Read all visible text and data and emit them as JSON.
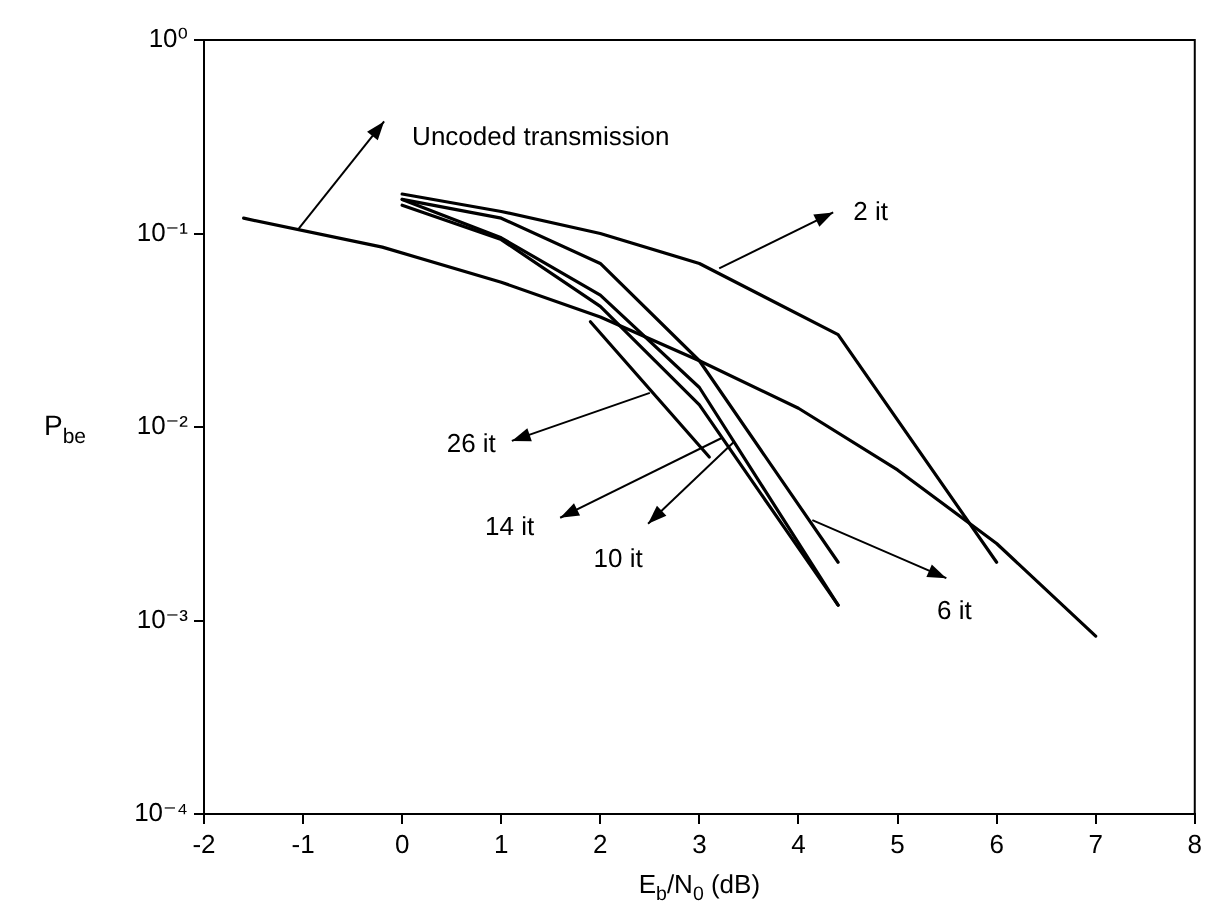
{
  "chart_data": {
    "type": "line",
    "xlabel": "E$_{b}$/N$_{0}$ (dB)",
    "ylabel": "P$_{be}$",
    "xlim": [
      -2,
      8
    ],
    "xticks": [
      -2,
      -1,
      0,
      1,
      2,
      3,
      4,
      5,
      6,
      7,
      8
    ],
    "ylim": [
      0.0001,
      1
    ],
    "yticks": [
      {
        "value": 0.0001,
        "label": "10⁻⁴"
      },
      {
        "value": 0.001,
        "label": "10⁻³"
      },
      {
        "value": 0.01,
        "label": "10⁻²"
      },
      {
        "value": 0.1,
        "label": "10⁻¹"
      },
      {
        "value": 1,
        "label": "10⁰"
      }
    ],
    "log": "y",
    "grid": false,
    "legend": false,
    "marker": "none",
    "line_style": "solid",
    "series": [
      {
        "color": "#000000",
        "x": [
          -1.6,
          -0.2,
          1,
          2,
          3,
          4,
          5,
          6,
          7
        ],
        "values": [
          0.12,
          0.085,
          0.056,
          0.037,
          0.022,
          0.0125,
          0.006,
          0.0025,
          0.00083
        ]
      },
      {
        "color": "#000000",
        "x": [
          0,
          1,
          2,
          3,
          4.4,
          6
        ],
        "values": [
          0.16,
          0.13,
          0.1,
          0.07,
          0.03,
          0.002
        ]
      },
      {
        "color": "#000000",
        "x": [
          0,
          1,
          2,
          3,
          4.4
        ],
        "values": [
          0.15,
          0.12,
          0.07,
          0.022,
          0.002
        ]
      },
      {
        "color": "#000000",
        "x": [
          0,
          1,
          2,
          3,
          4.4
        ],
        "values": [
          0.15,
          0.095,
          0.048,
          0.016,
          0.0012
        ]
      },
      {
        "color": "#000000",
        "x": [
          0,
          1,
          2,
          3,
          4.4
        ],
        "values": [
          0.14,
          0.093,
          0.042,
          0.013,
          0.0012
        ]
      },
      {
        "color": "#000000",
        "x": [
          1.9,
          3.1
        ],
        "values": [
          0.035,
          0.007
        ]
      }
    ],
    "annotations": [
      {
        "text": "Uncoded transmission",
        "x": -1.05,
        "y": 0.105
      },
      {
        "text": "2 it",
        "x": 3.2,
        "y": 0.066
      },
      {
        "text": "26 it",
        "x": 2.5,
        "y": 0.015
      },
      {
        "text": "14 it",
        "x": 3.23,
        "y": 0.0088
      },
      {
        "text": "10 it",
        "x": 3.35,
        "y": 0.0084
      },
      {
        "text": "6 it",
        "x": 4.14,
        "y": 0.0033
      }
    ]
  }
}
